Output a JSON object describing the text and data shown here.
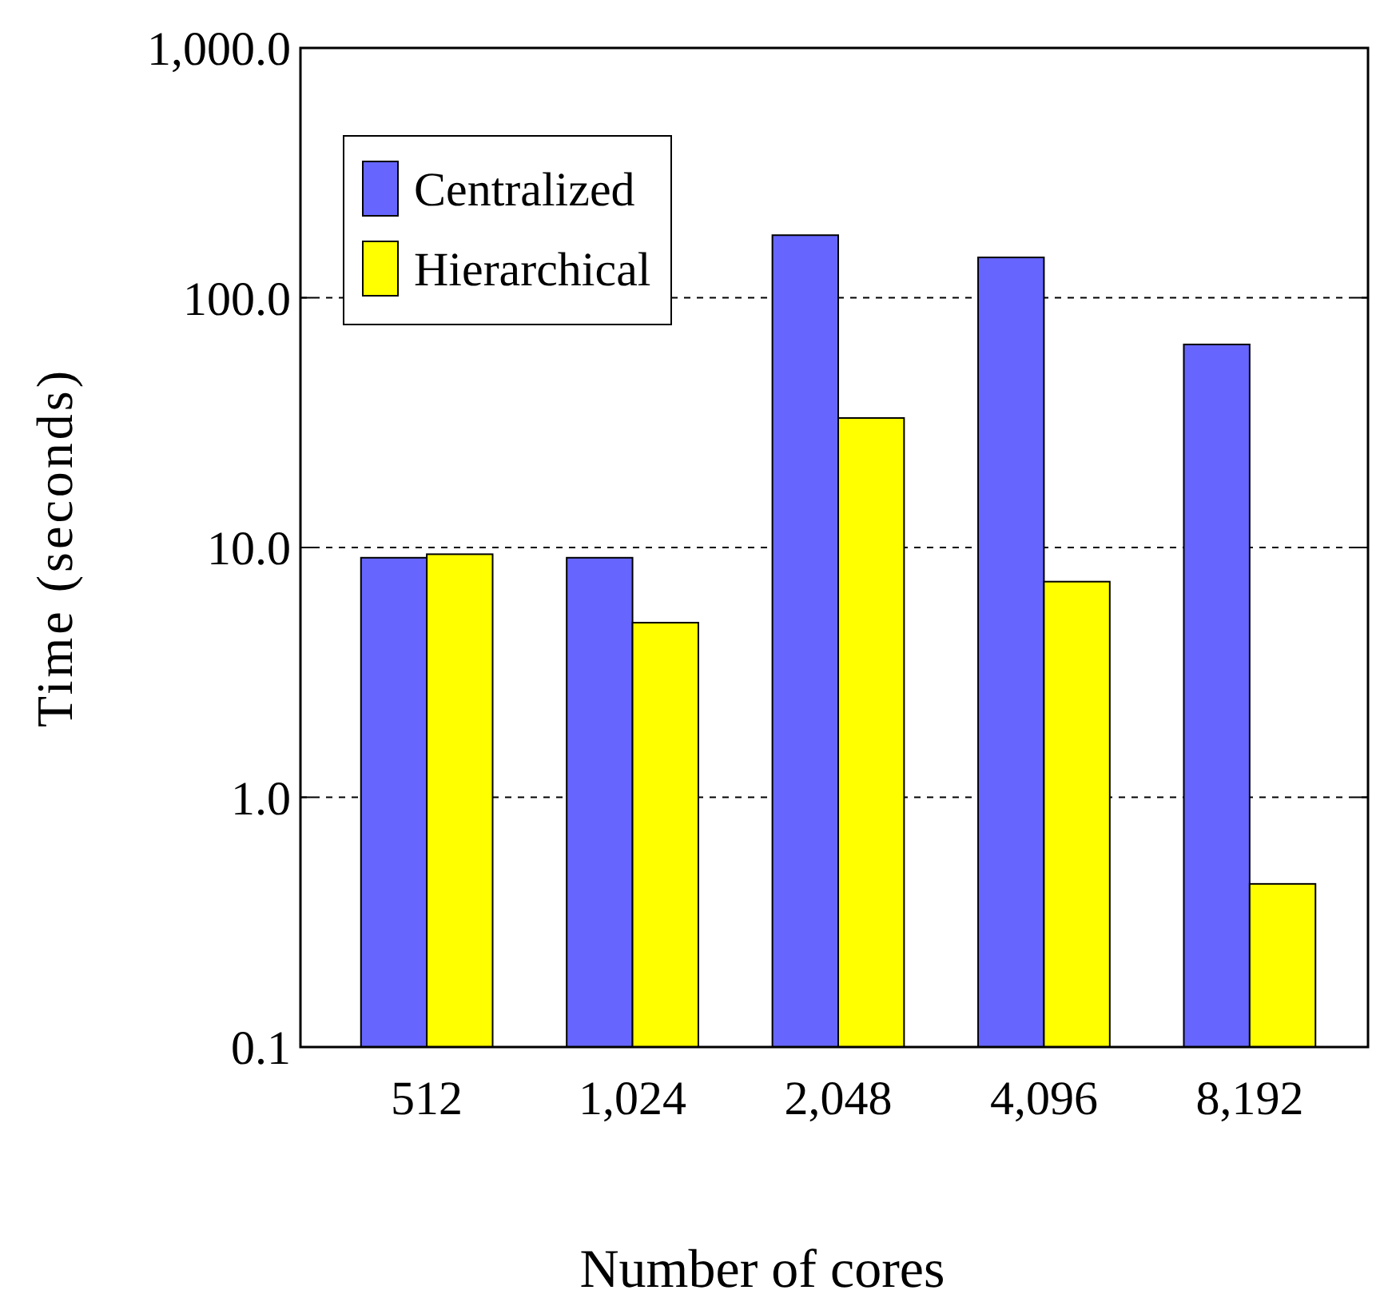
{
  "chart_data": {
    "type": "bar",
    "xlabel": "Number of cores",
    "ylabel": "Time (seconds)",
    "categories": [
      "512",
      "1,024",
      "2,048",
      "4,096",
      "8,192"
    ],
    "series": [
      {
        "name": "Centralized",
        "color": "#6666ff",
        "values": [
          9.1,
          9.1,
          178,
          145,
          65
        ]
      },
      {
        "name": "Hierarchical",
        "color": "#ffff00",
        "values": [
          9.4,
          5.0,
          33,
          7.3,
          0.45
        ]
      }
    ],
    "log": true,
    "ylim": [
      0.1,
      1000
    ],
    "yticks": [
      0.1,
      {
        "value": 1,
        "label": "1.0"
      },
      {
        "value": 10,
        "label": "10.0"
      },
      {
        "value": 100,
        "label": "100.0"
      },
      {
        "value": 1000,
        "label": "1,000.0"
      }
    ],
    "grid": "y",
    "legend": "top left"
  }
}
